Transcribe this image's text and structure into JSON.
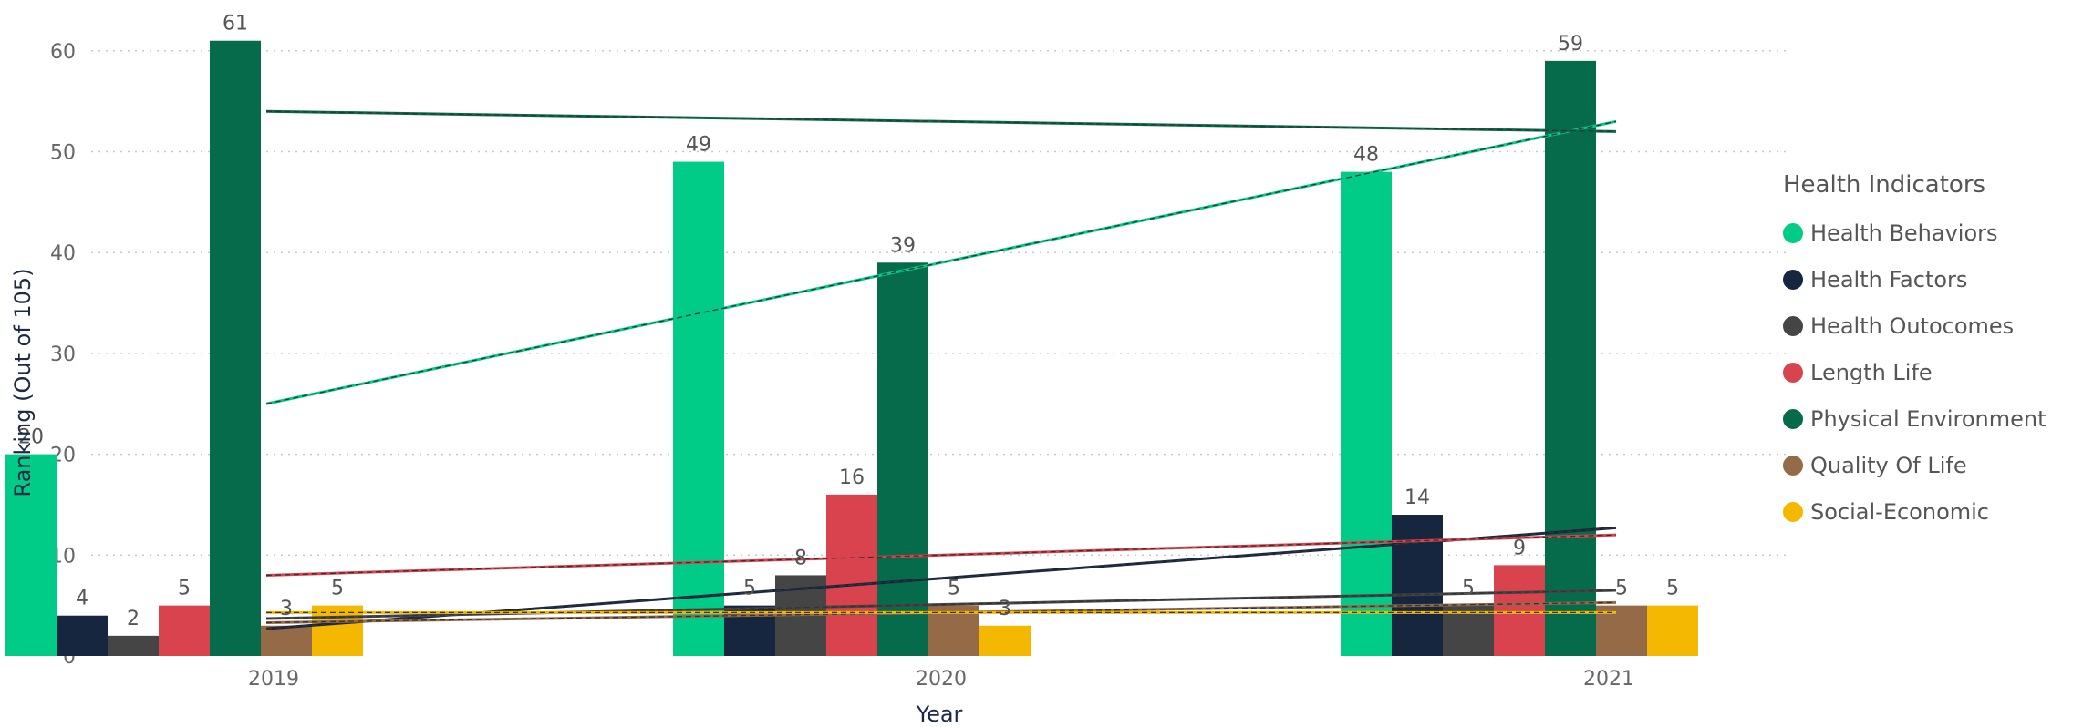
{
  "chart_data": {
    "type": "bar",
    "xlabel": "Year",
    "ylabel": "Ranking (Out of 105)",
    "ylim": [
      0,
      60
    ],
    "yticks": [
      0,
      10,
      20,
      30,
      40,
      50,
      60
    ],
    "categories": [
      "2019",
      "2020",
      "2021"
    ],
    "grid": "horizontal dotted",
    "legend_title": "Health Indicators",
    "legend_position": "right",
    "series": [
      {
        "name": "Health Behaviors",
        "color": "#00cc88",
        "values": [
          20,
          49,
          48
        ]
      },
      {
        "name": "Health Factors",
        "color": "#17263f",
        "values": [
          4,
          5,
          14
        ]
      },
      {
        "name": "Health Outocomes",
        "color": "#454545",
        "values": [
          2,
          8,
          5
        ]
      },
      {
        "name": "Length Life",
        "color": "#d9434e",
        "values": [
          5,
          16,
          9
        ]
      },
      {
        "name": "Physical Environment",
        "color": "#066b4b",
        "values": [
          61,
          39,
          59
        ]
      },
      {
        "name": "Quality Of Life",
        "color": "#956b47",
        "values": [
          3,
          5,
          5
        ]
      },
      {
        "name": "Social-Economic",
        "color": "#f5b800",
        "values": [
          5,
          3,
          5
        ]
      }
    ],
    "trendlines": [
      {
        "series": "Health Behaviors",
        "start": 25.0,
        "end": 53.0,
        "color": "#00cc88"
      },
      {
        "series": "Health Factors",
        "start": 2.7,
        "end": 12.7,
        "color": "#17263f"
      },
      {
        "series": "Health Outocomes",
        "start": 3.7,
        "end": 6.5,
        "color": "#454545"
      },
      {
        "series": "Length Life",
        "start": 8.0,
        "end": 12.0,
        "color": "#d9434e"
      },
      {
        "series": "Physical Environment",
        "start": 54.0,
        "end": 52.0,
        "color": "#066b4b"
      },
      {
        "series": "Quality Of Life",
        "start": 3.3,
        "end": 5.3,
        "color": "#956b47"
      },
      {
        "series": "Social-Economic",
        "start": 4.3,
        "end": 4.3,
        "color": "#f5b800"
      }
    ]
  }
}
